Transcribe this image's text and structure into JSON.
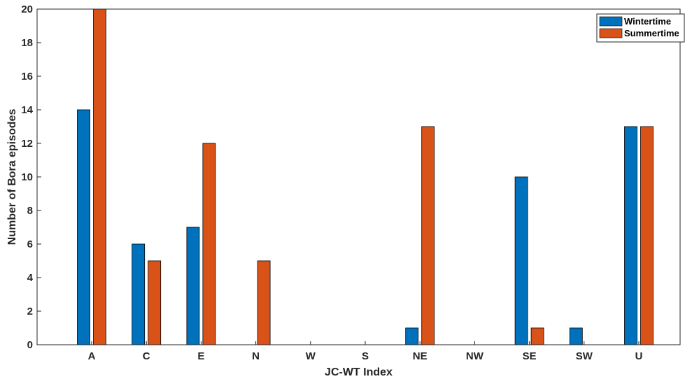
{
  "chart_data": {
    "type": "bar",
    "title": "",
    "xlabel": "JC-WT Index",
    "ylabel": "Number of Bora episodes",
    "categories": [
      "A",
      "C",
      "E",
      "N",
      "W",
      "S",
      "NE",
      "NW",
      "SE",
      "SW",
      "U"
    ],
    "series": [
      {
        "name": "Wintertime",
        "color": "#0072BD",
        "values": [
          14,
          6,
          7,
          0,
          0,
          0,
          1,
          0,
          10,
          1,
          13
        ]
      },
      {
        "name": "Summertime",
        "color": "#D95319",
        "values": [
          20,
          5,
          12,
          5,
          0,
          0,
          13,
          0,
          1,
          0,
          13
        ]
      }
    ],
    "ylim": [
      0,
      20
    ],
    "yticks": [
      0,
      2,
      4,
      6,
      8,
      10,
      12,
      14,
      16,
      18,
      20
    ],
    "grid": false,
    "legend_position": "top-right"
  }
}
